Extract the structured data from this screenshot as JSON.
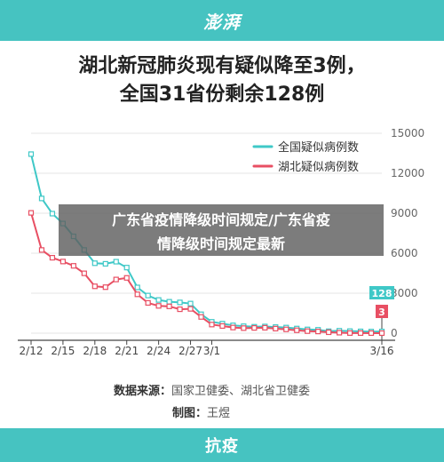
{
  "header": {
    "brand": "澎湃"
  },
  "titles": {
    "line1": "湖北新冠肺炎现有疑似降至3例，",
    "line2": "全国31省份剩余128例"
  },
  "overlay": {
    "line1": "广东省疫情降级时间规定/广东省疫",
    "line2": "情降级时间规定最新"
  },
  "credits": {
    "source_label": "数据来源：",
    "source_value": "国家卫健委、湖北省卫健委",
    "maker_label": "制图：",
    "maker_value": "王煜"
  },
  "footer": {
    "tag": "抗疫"
  },
  "colors": {
    "national": "#3fc8c7",
    "hubei": "#e84f63",
    "band": "#46c3c1",
    "grid": "#e5e5e5"
  },
  "chart_data": {
    "type": "line",
    "title": "",
    "xlabel": "",
    "ylabel": "",
    "ylim": [
      0,
      15000
    ],
    "yticks": [
      0,
      3000,
      6000,
      9000,
      12000,
      15000
    ],
    "grid": true,
    "legend_position": "top-right",
    "x": [
      12,
      13,
      14,
      15,
      16,
      17,
      18,
      19,
      20,
      21,
      22,
      23,
      24,
      25,
      26,
      27,
      28,
      29,
      30,
      31,
      32,
      33,
      34,
      35,
      36,
      37,
      38,
      39,
      40,
      41,
      42,
      43,
      44,
      45
    ],
    "x_ticks": [
      {
        "x": 12,
        "label": "2/12"
      },
      {
        "x": 15,
        "label": "2/15"
      },
      {
        "x": 18,
        "label": "2/18"
      },
      {
        "x": 21,
        "label": "2/21"
      },
      {
        "x": 24,
        "label": "2/24"
      },
      {
        "x": 27,
        "label": "2/27"
      },
      {
        "x": 29,
        "label": "3/1"
      },
      {
        "x": 45,
        "label": "3/16"
      }
    ],
    "series": [
      {
        "name": "全国疑似病例数",
        "values": [
          13435,
          10109,
          8969,
          8228,
          7264,
          6242,
          5248,
          5206,
          5365,
          4922,
          3434,
          2824,
          2491,
          2358,
          2308,
          2222,
          1418,
          851,
          715,
          587,
          522,
          482,
          502,
          458,
          421,
          349,
          282,
          253,
          147,
          183,
          155,
          134,
          120,
          128
        ],
        "end_label": "128"
      },
      {
        "name": "湖北疑似病例数",
        "values": [
          9028,
          6242,
          5661,
          5377,
          5053,
          4491,
          3516,
          3452,
          4028,
          4148,
          2913,
          2271,
          2048,
          2011,
          1795,
          1824,
          1218,
          645,
          538,
          423,
          379,
          394,
          407,
          343,
          285,
          218,
          152,
          126,
          69,
          37,
          9,
          6,
          4,
          3
        ],
        "end_label": "3"
      }
    ]
  }
}
